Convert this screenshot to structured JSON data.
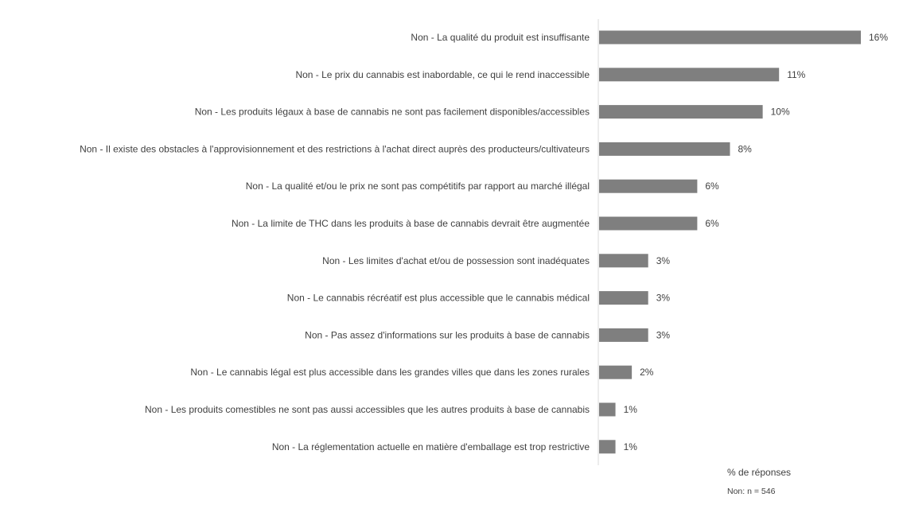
{
  "chart_data": {
    "type": "bar",
    "orientation": "horizontal",
    "categories": [
      "Non  - La qualité du produit est insuffisante",
      "Non - Le prix du cannabis est inabordable, ce qui le rend inaccessible",
      "Non - Les produits légaux à base de cannabis ne sont pas facilement disponibles/accessibles",
      "Non - Il existe des obstacles à l'approvisionnement et des restrictions à l'achat direct auprès des producteurs/cultivateurs",
      "Non - La qualité et/ou le prix ne sont pas compétitifs par rapport au marché illégal",
      "Non - La limite de THC dans les produits à base de cannabis devrait être augmentée",
      "Non - Les limites d'achat et/ou de possession sont inadéquates",
      "Non - Le cannabis récréatif est plus accessible que le cannabis médical",
      "Non - Pas assez d'informations sur les produits à base de cannabis",
      "Non - Le cannabis légal est plus accessible dans les grandes villes que dans les zones rurales",
      "Non - Les produits comestibles ne sont pas aussi accessibles que les autres produits à base de cannabis",
      "Non - La réglementation actuelle en matière d'emballage est trop restrictive"
    ],
    "values": [
      16,
      11,
      10,
      8,
      6,
      6,
      3,
      3,
      3,
      2,
      1,
      1
    ],
    "value_labels": [
      "16%",
      "11%",
      "10%",
      "8%",
      "6%",
      "6%",
      "3%",
      "3%",
      "3%",
      "2%",
      "1%",
      "1%"
    ],
    "xlabel": "% de réponses",
    "note": "Non: n = 546",
    "xlim": [
      0,
      16
    ],
    "grid": false,
    "bar_color": "#7f7f7f",
    "axis_color": "#d9d9d9",
    "text_color": "#404040"
  }
}
